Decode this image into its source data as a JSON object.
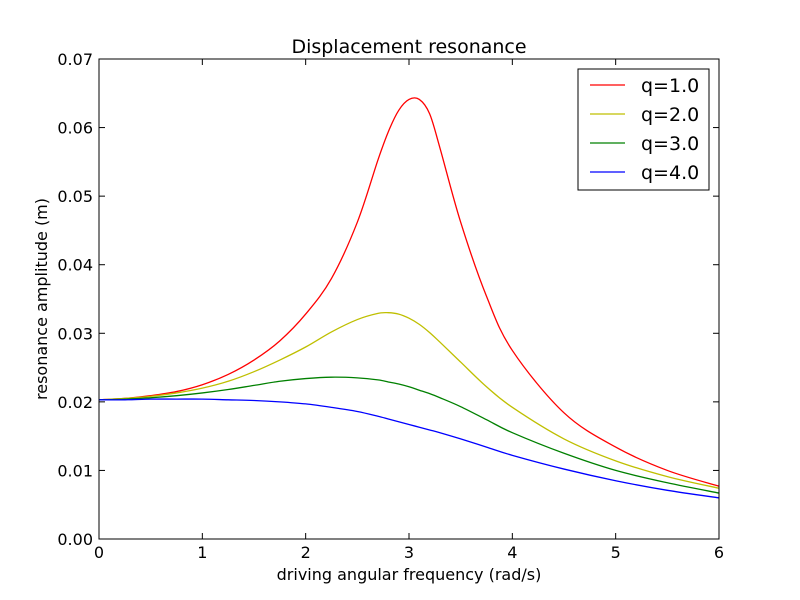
{
  "chart_data": {
    "type": "line",
    "title": "Displacement resonance",
    "xlabel": "driving angular frequency (rad/s)",
    "ylabel": "resonance amplitude (m)",
    "xlim": [
      0,
      6
    ],
    "ylim": [
      0,
      0.07
    ],
    "xticks": [
      "0",
      "1",
      "2",
      "3",
      "4",
      "5",
      "6"
    ],
    "yticks": [
      "0.00",
      "0.01",
      "0.02",
      "0.03",
      "0.04",
      "0.05",
      "0.06",
      "0.07"
    ],
    "grid": false,
    "legend_position": "top-right",
    "x": [
      0,
      0.25,
      0.5,
      0.75,
      1.0,
      1.25,
      1.5,
      1.75,
      2.0,
      2.25,
      2.5,
      2.7,
      2.8,
      2.9,
      3.0,
      3.1,
      3.2,
      3.3,
      3.5,
      3.75,
      4.0,
      4.5,
      5.0,
      5.5,
      6.0
    ],
    "series": [
      {
        "name": "q=1.0",
        "color": "#ff0000",
        "values": [
          0.0203,
          0.0205,
          0.0209,
          0.0215,
          0.0225,
          0.024,
          0.0261,
          0.0289,
          0.0328,
          0.038,
          0.0462,
          0.0553,
          0.0594,
          0.0625,
          0.0641,
          0.0641,
          0.062,
          0.057,
          0.0462,
          0.0354,
          0.0275,
          0.0184,
          0.0134,
          0.01,
          0.0077
        ]
      },
      {
        "name": "q=2.0",
        "color": "#bfbf00",
        "values": [
          0.0203,
          0.0205,
          0.0208,
          0.0213,
          0.022,
          0.023,
          0.0244,
          0.0261,
          0.028,
          0.0302,
          0.032,
          0.0329,
          0.033,
          0.0328,
          0.0322,
          0.0313,
          0.0301,
          0.0287,
          0.0258,
          0.0222,
          0.0192,
          0.0146,
          0.0114,
          0.0091,
          0.0074
        ]
      },
      {
        "name": "q=3.0",
        "color": "#008000",
        "values": [
          0.0203,
          0.0204,
          0.0206,
          0.0209,
          0.0213,
          0.0218,
          0.0224,
          0.023,
          0.0234,
          0.0236,
          0.0235,
          0.0232,
          0.0229,
          0.0226,
          0.0222,
          0.0217,
          0.0212,
          0.0206,
          0.0193,
          0.0174,
          0.0155,
          0.0125,
          0.01,
          0.0082,
          0.0067
        ]
      },
      {
        "name": "q=4.0",
        "color": "#0000ff",
        "values": [
          0.0203,
          0.0203,
          0.0204,
          0.0204,
          0.0204,
          0.0203,
          0.0202,
          0.02,
          0.0197,
          0.0192,
          0.0186,
          0.0179,
          0.0175,
          0.0171,
          0.0167,
          0.0163,
          0.0159,
          0.0155,
          0.0146,
          0.0134,
          0.0122,
          0.0102,
          0.0085,
          0.0071,
          0.006
        ]
      }
    ]
  }
}
